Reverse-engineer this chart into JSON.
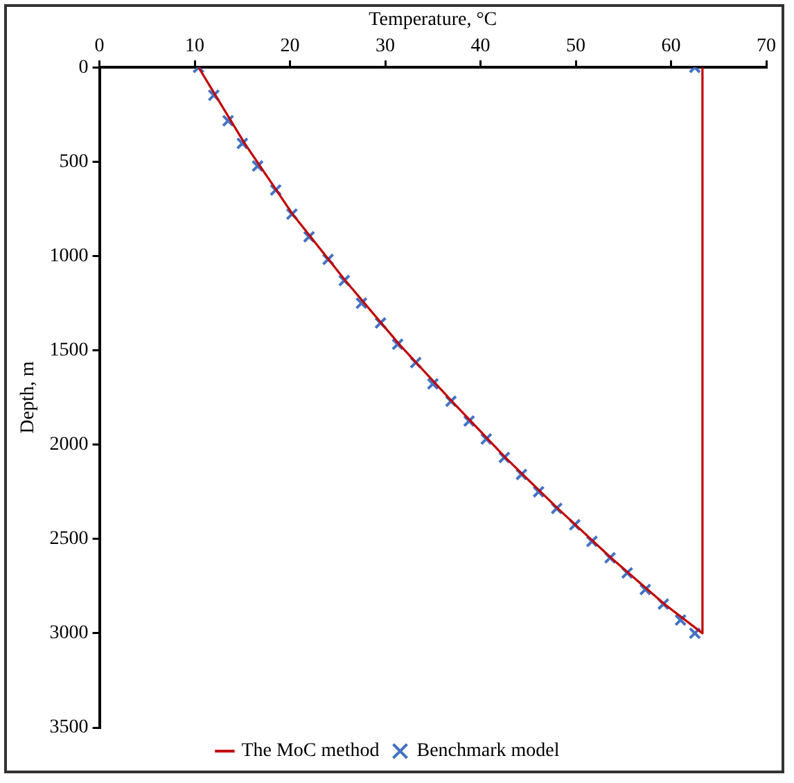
{
  "chart_data": {
    "type": "line",
    "xlabel": "Temperature, °C",
    "ylabel": "Depth, m",
    "xlim": [
      0,
      70
    ],
    "xticks": [
      0,
      10,
      20,
      30,
      40,
      50,
      60,
      70
    ],
    "ylim": [
      3500,
      0
    ],
    "yticks": [
      0,
      500,
      1000,
      1500,
      2000,
      2500,
      3000,
      3500
    ],
    "grid": false,
    "legend": "bottom",
    "series": [
      {
        "name": "The MoC method",
        "type": "line",
        "color": "#c00000",
        "line_style": "solid",
        "marker": "none",
        "x": [
          10.4,
          15.2,
          20.3,
          25.8,
          31.5,
          37.0,
          42.6,
          48.1,
          53.7,
          59.3,
          63.3,
          63.3
        ],
        "values": [
          0,
          400,
          780,
          1130,
          1470,
          1770,
          2068,
          2338,
          2600,
          2845,
          3000,
          0
        ]
      },
      {
        "name": "Benchmark model",
        "type": "scatter",
        "color": "#4472c4",
        "marker": "cross",
        "x": [
          10.4,
          12.0,
          13.5,
          15.0,
          16.6,
          18.5,
          20.2,
          22.0,
          24.0,
          25.7,
          27.5,
          29.5,
          31.3,
          33.2,
          35.0,
          36.9,
          38.8,
          40.6,
          42.5,
          44.3,
          46.1,
          48.0,
          49.9,
          51.7,
          53.6,
          55.4,
          57.3,
          59.2,
          61.0,
          62.5,
          62.5
        ],
        "values": [
          0,
          148,
          283,
          403,
          523,
          650,
          778,
          898,
          1018,
          1130,
          1250,
          1355,
          1468,
          1565,
          1678,
          1770,
          1875,
          1970,
          2068,
          2158,
          2250,
          2338,
          2425,
          2513,
          2600,
          2680,
          2768,
          2845,
          2930,
          3000,
          0
        ]
      }
    ]
  }
}
